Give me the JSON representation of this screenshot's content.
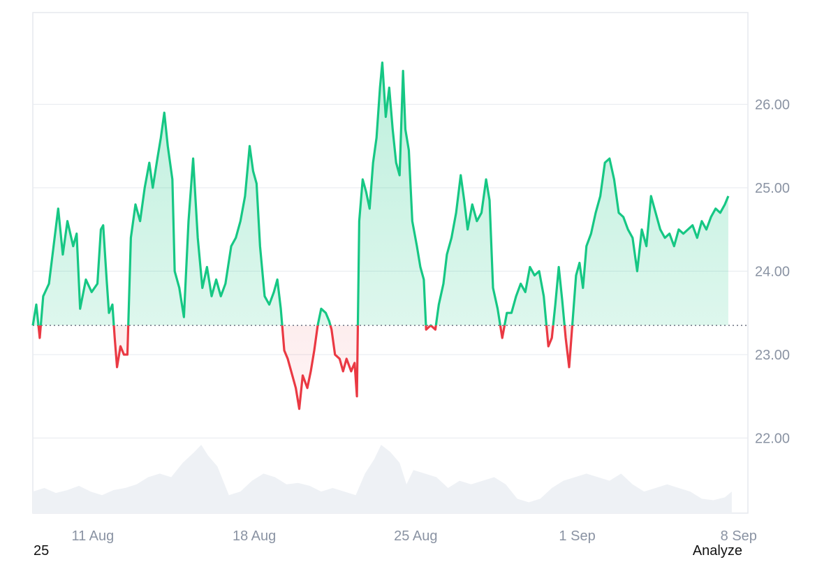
{
  "chart_data": {
    "type": "area",
    "baseline": 23.35,
    "ylim": [
      21.1,
      27.1
    ],
    "y_ticks": [
      22,
      23,
      24,
      25,
      26
    ],
    "y_tick_labels": [
      "22.00",
      "23.00",
      "24.00",
      "25.00",
      "26.00"
    ],
    "x_tick_labels": [
      "11 Aug",
      "18 Aug",
      "25 Aug",
      "1 Sep",
      "8 Sep"
    ],
    "x_tick_days": [
      2.6,
      9.6,
      16.6,
      23.6,
      30.6
    ],
    "x_range_days": [
      0,
      31
    ],
    "grid": true,
    "legend": "none",
    "colors": {
      "above": "#16c784",
      "below": "#ea3943",
      "volume": "#eef1f5",
      "grid": "#e9ecf0",
      "baseline": "#6b7280"
    },
    "series": [
      {
        "values": [
          [
            0.0,
            23.35
          ],
          [
            0.15,
            23.6
          ],
          [
            0.3,
            23.2
          ],
          [
            0.45,
            23.7
          ],
          [
            0.7,
            23.85
          ],
          [
            0.9,
            24.3
          ],
          [
            1.1,
            24.75
          ],
          [
            1.3,
            24.2
          ],
          [
            1.5,
            24.6
          ],
          [
            1.75,
            24.3
          ],
          [
            1.9,
            24.45
          ],
          [
            2.05,
            23.55
          ],
          [
            2.3,
            23.9
          ],
          [
            2.55,
            23.75
          ],
          [
            2.8,
            23.85
          ],
          [
            2.95,
            24.5
          ],
          [
            3.05,
            24.55
          ],
          [
            3.2,
            23.9
          ],
          [
            3.3,
            23.5
          ],
          [
            3.45,
            23.6
          ],
          [
            3.55,
            23.2
          ],
          [
            3.65,
            22.85
          ],
          [
            3.8,
            23.1
          ],
          [
            3.95,
            23.0
          ],
          [
            4.1,
            23.0
          ],
          [
            4.25,
            24.4
          ],
          [
            4.45,
            24.8
          ],
          [
            4.65,
            24.6
          ],
          [
            4.85,
            25.0
          ],
          [
            5.05,
            25.3
          ],
          [
            5.2,
            25.0
          ],
          [
            5.4,
            25.35
          ],
          [
            5.55,
            25.6
          ],
          [
            5.7,
            25.9
          ],
          [
            5.85,
            25.5
          ],
          [
            6.05,
            25.1
          ],
          [
            6.15,
            24.0
          ],
          [
            6.35,
            23.8
          ],
          [
            6.55,
            23.45
          ],
          [
            6.75,
            24.6
          ],
          [
            6.95,
            25.35
          ],
          [
            7.15,
            24.4
          ],
          [
            7.35,
            23.8
          ],
          [
            7.55,
            24.05
          ],
          [
            7.75,
            23.7
          ],
          [
            7.95,
            23.9
          ],
          [
            8.15,
            23.7
          ],
          [
            8.35,
            23.85
          ],
          [
            8.6,
            24.3
          ],
          [
            8.8,
            24.4
          ],
          [
            9.0,
            24.6
          ],
          [
            9.2,
            24.9
          ],
          [
            9.4,
            25.5
          ],
          [
            9.55,
            25.2
          ],
          [
            9.7,
            25.05
          ],
          [
            9.85,
            24.3
          ],
          [
            10.05,
            23.7
          ],
          [
            10.25,
            23.6
          ],
          [
            10.45,
            23.75
          ],
          [
            10.6,
            23.9
          ],
          [
            10.75,
            23.55
          ],
          [
            10.9,
            23.05
          ],
          [
            11.05,
            22.95
          ],
          [
            11.25,
            22.75
          ],
          [
            11.4,
            22.6
          ],
          [
            11.55,
            22.35
          ],
          [
            11.7,
            22.75
          ],
          [
            11.9,
            22.6
          ],
          [
            12.05,
            22.8
          ],
          [
            12.2,
            23.05
          ],
          [
            12.35,
            23.35
          ],
          [
            12.5,
            23.55
          ],
          [
            12.7,
            23.5
          ],
          [
            12.85,
            23.4
          ],
          [
            12.95,
            23.3
          ],
          [
            13.1,
            23.0
          ],
          [
            13.3,
            22.95
          ],
          [
            13.45,
            22.8
          ],
          [
            13.6,
            22.95
          ],
          [
            13.8,
            22.8
          ],
          [
            13.95,
            22.9
          ],
          [
            14.05,
            22.5
          ],
          [
            14.15,
            24.6
          ],
          [
            14.3,
            25.1
          ],
          [
            14.45,
            24.95
          ],
          [
            14.6,
            24.75
          ],
          [
            14.75,
            25.3
          ],
          [
            14.9,
            25.6
          ],
          [
            15.05,
            26.2
          ],
          [
            15.15,
            26.5
          ],
          [
            15.3,
            25.85
          ],
          [
            15.45,
            26.2
          ],
          [
            15.6,
            25.7
          ],
          [
            15.75,
            25.3
          ],
          [
            15.9,
            25.15
          ],
          [
            16.05,
            26.4
          ],
          [
            16.15,
            25.7
          ],
          [
            16.3,
            25.45
          ],
          [
            16.45,
            24.6
          ],
          [
            16.65,
            24.3
          ],
          [
            16.8,
            24.05
          ],
          [
            16.95,
            23.9
          ],
          [
            17.05,
            23.3
          ],
          [
            17.25,
            23.35
          ],
          [
            17.45,
            23.3
          ],
          [
            17.6,
            23.6
          ],
          [
            17.8,
            23.85
          ],
          [
            17.95,
            24.2
          ],
          [
            18.15,
            24.4
          ],
          [
            18.35,
            24.7
          ],
          [
            18.55,
            25.15
          ],
          [
            18.7,
            24.85
          ],
          [
            18.85,
            24.5
          ],
          [
            19.05,
            24.8
          ],
          [
            19.25,
            24.6
          ],
          [
            19.45,
            24.7
          ],
          [
            19.65,
            25.1
          ],
          [
            19.8,
            24.85
          ],
          [
            19.95,
            23.8
          ],
          [
            20.15,
            23.55
          ],
          [
            20.35,
            23.2
          ],
          [
            20.55,
            23.5
          ],
          [
            20.75,
            23.5
          ],
          [
            20.95,
            23.7
          ],
          [
            21.15,
            23.85
          ],
          [
            21.35,
            23.75
          ],
          [
            21.55,
            24.05
          ],
          [
            21.75,
            23.95
          ],
          [
            21.95,
            24.0
          ],
          [
            22.15,
            23.7
          ],
          [
            22.35,
            23.1
          ],
          [
            22.5,
            23.2
          ],
          [
            22.65,
            23.6
          ],
          [
            22.8,
            24.05
          ],
          [
            22.95,
            23.65
          ],
          [
            23.1,
            23.2
          ],
          [
            23.25,
            22.85
          ],
          [
            23.4,
            23.4
          ],
          [
            23.55,
            23.95
          ],
          [
            23.7,
            24.1
          ],
          [
            23.85,
            23.8
          ],
          [
            24.0,
            24.3
          ],
          [
            24.2,
            24.45
          ],
          [
            24.4,
            24.7
          ],
          [
            24.6,
            24.9
          ],
          [
            24.8,
            25.3
          ],
          [
            25.0,
            25.35
          ],
          [
            25.2,
            25.1
          ],
          [
            25.4,
            24.7
          ],
          [
            25.6,
            24.65
          ],
          [
            25.8,
            24.5
          ],
          [
            26.0,
            24.4
          ],
          [
            26.2,
            24.0
          ],
          [
            26.4,
            24.5
          ],
          [
            26.6,
            24.3
          ],
          [
            26.8,
            24.9
          ],
          [
            27.0,
            24.7
          ],
          [
            27.2,
            24.5
          ],
          [
            27.4,
            24.4
          ],
          [
            27.6,
            24.45
          ],
          [
            27.8,
            24.3
          ],
          [
            28.0,
            24.5
          ],
          [
            28.2,
            24.45
          ],
          [
            28.4,
            24.5
          ],
          [
            28.6,
            24.55
          ],
          [
            28.8,
            24.4
          ],
          [
            29.0,
            24.6
          ],
          [
            29.2,
            24.5
          ],
          [
            29.4,
            24.65
          ],
          [
            29.6,
            24.75
          ],
          [
            29.8,
            24.7
          ],
          [
            30.0,
            24.8
          ],
          [
            30.15,
            24.9
          ]
        ]
      }
    ],
    "volume": [
      [
        0.0,
        0.3
      ],
      [
        0.5,
        0.35
      ],
      [
        1.0,
        0.28
      ],
      [
        1.5,
        0.32
      ],
      [
        2.0,
        0.38
      ],
      [
        2.5,
        0.3
      ],
      [
        3.0,
        0.25
      ],
      [
        3.5,
        0.32
      ],
      [
        4.0,
        0.35
      ],
      [
        4.5,
        0.4
      ],
      [
        5.0,
        0.5
      ],
      [
        5.5,
        0.55
      ],
      [
        6.0,
        0.5
      ],
      [
        6.5,
        0.7
      ],
      [
        7.0,
        0.85
      ],
      [
        7.3,
        0.95
      ],
      [
        7.6,
        0.8
      ],
      [
        8.0,
        0.65
      ],
      [
        8.5,
        0.25
      ],
      [
        9.0,
        0.3
      ],
      [
        9.5,
        0.45
      ],
      [
        10.0,
        0.55
      ],
      [
        10.5,
        0.5
      ],
      [
        11.0,
        0.4
      ],
      [
        11.5,
        0.42
      ],
      [
        12.0,
        0.38
      ],
      [
        12.5,
        0.3
      ],
      [
        13.0,
        0.35
      ],
      [
        13.5,
        0.3
      ],
      [
        14.0,
        0.25
      ],
      [
        14.4,
        0.55
      ],
      [
        14.8,
        0.75
      ],
      [
        15.1,
        0.95
      ],
      [
        15.5,
        0.85
      ],
      [
        15.9,
        0.7
      ],
      [
        16.2,
        0.4
      ],
      [
        16.5,
        0.6
      ],
      [
        17.0,
        0.55
      ],
      [
        17.5,
        0.5
      ],
      [
        18.0,
        0.35
      ],
      [
        18.5,
        0.45
      ],
      [
        19.0,
        0.4
      ],
      [
        19.5,
        0.45
      ],
      [
        20.0,
        0.5
      ],
      [
        20.5,
        0.4
      ],
      [
        21.0,
        0.2
      ],
      [
        21.5,
        0.15
      ],
      [
        22.0,
        0.2
      ],
      [
        22.5,
        0.35
      ],
      [
        23.0,
        0.45
      ],
      [
        23.5,
        0.5
      ],
      [
        24.0,
        0.55
      ],
      [
        24.5,
        0.5
      ],
      [
        25.0,
        0.45
      ],
      [
        25.5,
        0.55
      ],
      [
        26.0,
        0.4
      ],
      [
        26.5,
        0.3
      ],
      [
        27.0,
        0.35
      ],
      [
        27.5,
        0.4
      ],
      [
        28.0,
        0.35
      ],
      [
        28.5,
        0.3
      ],
      [
        29.0,
        0.2
      ],
      [
        29.5,
        0.18
      ],
      [
        30.0,
        0.22
      ],
      [
        30.3,
        0.3
      ]
    ]
  },
  "footer": {
    "left_text": "25",
    "right_button": "Analyze"
  }
}
